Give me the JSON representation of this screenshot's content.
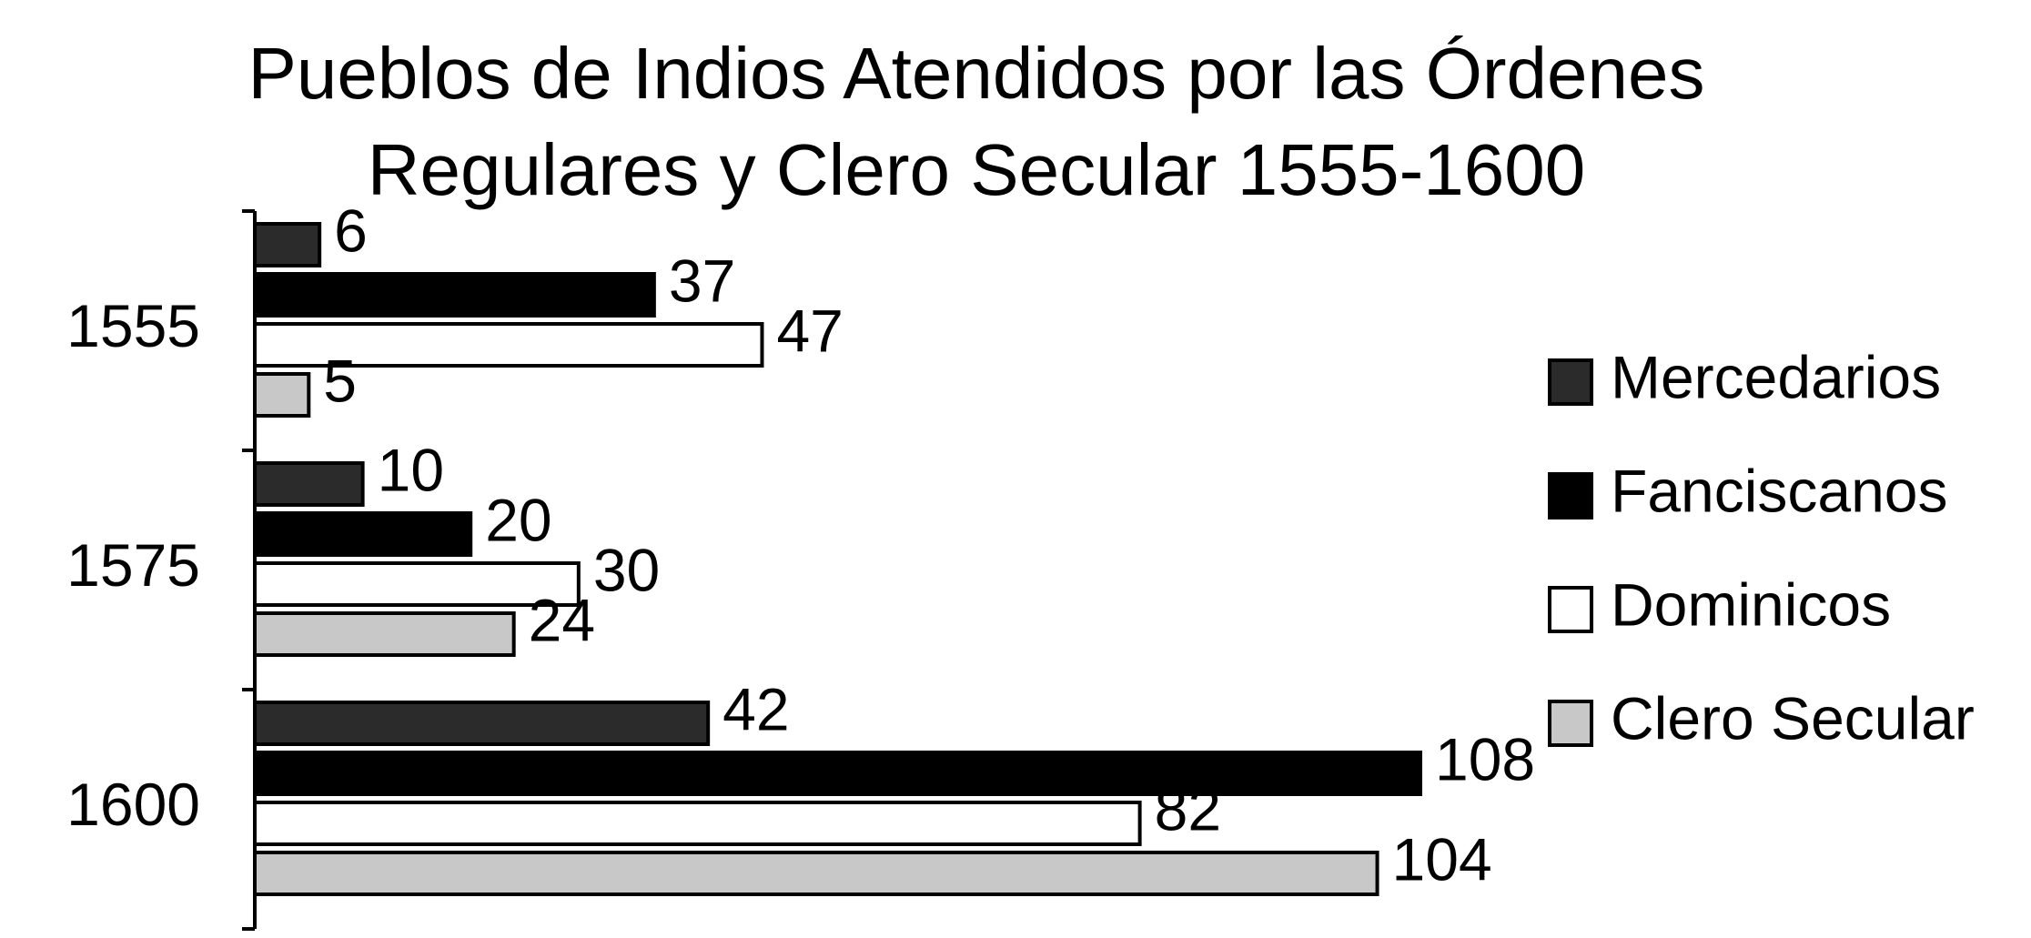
{
  "chart_data": {
    "type": "bar",
    "orientation": "horizontal",
    "title": "Pueblos de Indios Atendidos por las Órdenes Regulares y Clero Secular 1555-1600",
    "categories": [
      "1555",
      "1575",
      "1600"
    ],
    "series": [
      {
        "name": "Mercedarios",
        "color": "#2b2b2b",
        "values": [
          6,
          10,
          42
        ]
      },
      {
        "name": "Fanciscanos",
        "color": "#000000",
        "values": [
          37,
          20,
          108
        ]
      },
      {
        "name": "Dominicos",
        "color": "#ffffff",
        "values": [
          47,
          30,
          82
        ]
      },
      {
        "name": "Clero Secular",
        "color": "#c8c8c8",
        "values": [
          5,
          24,
          104
        ]
      }
    ],
    "legend": "right"
  }
}
